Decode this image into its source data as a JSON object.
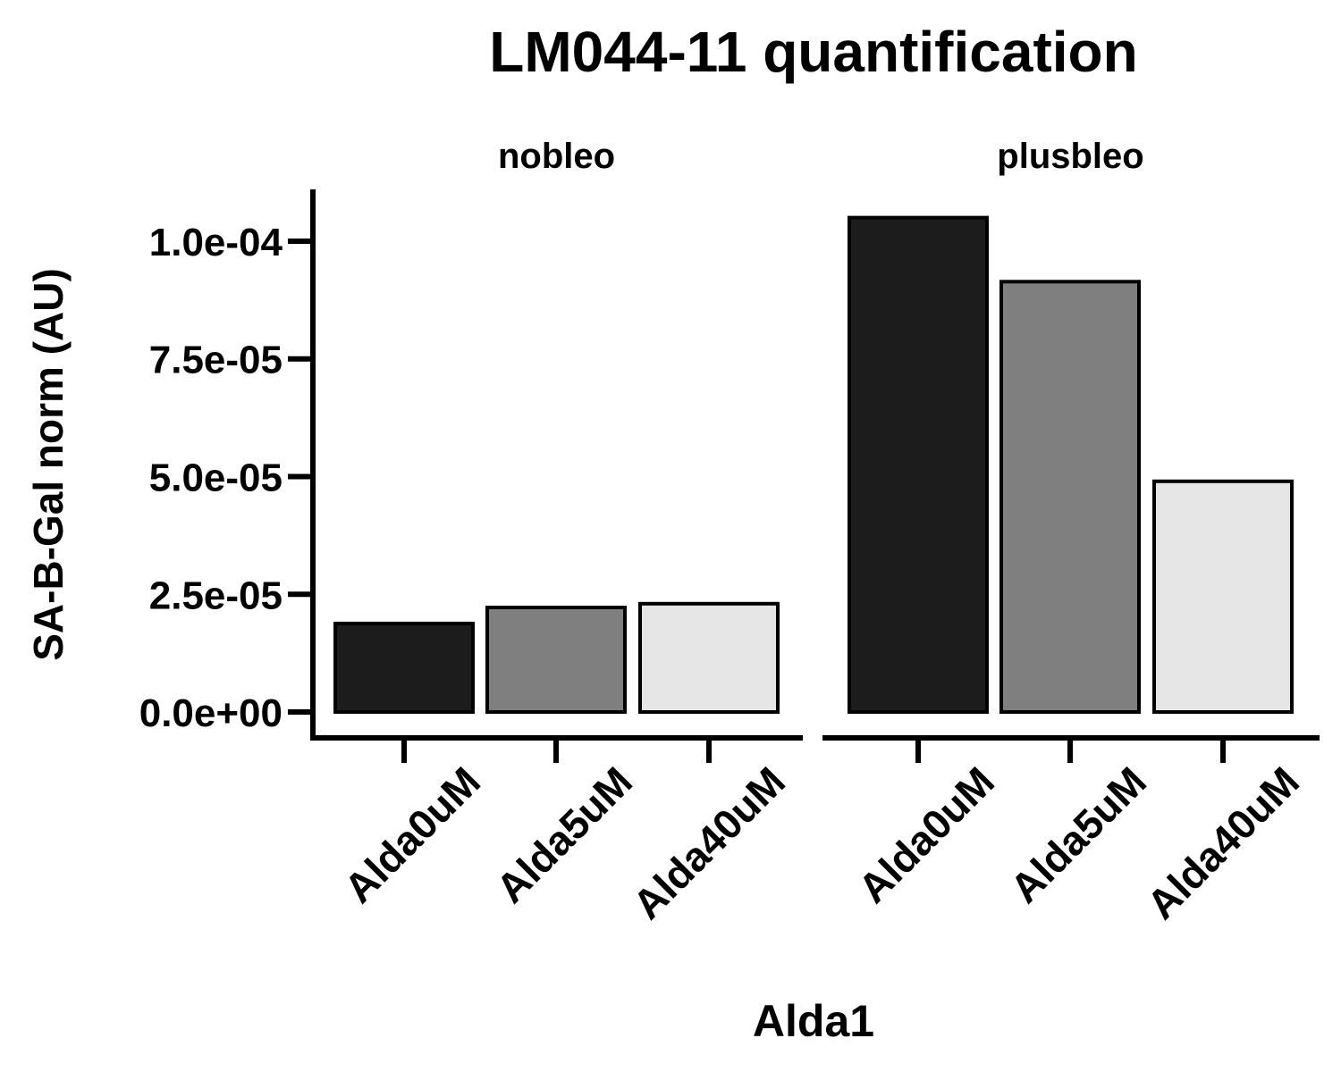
{
  "chart_data": {
    "type": "bar",
    "title": "LM044-11 quantification",
    "xlabel": "Alda1",
    "ylabel": "SA-B-Gal norm (AU)",
    "ylim": [
      -5.5e-06,
      0.000111
    ],
    "yticks": [
      0,
      2.5e-05,
      5e-05,
      7.5e-05,
      0.0001
    ],
    "ytick_labels": [
      "0.0e+00",
      "2.5e-05",
      "5.0e-05",
      "7.5e-05",
      "1.0e-04"
    ],
    "grid": false,
    "legend": "none",
    "categories": [
      "Alda0uM",
      "Alda5uM",
      "Alda40uM"
    ],
    "colors": [
      "#1c1c1c",
      "#7f7f7f",
      "#e6e6e6"
    ],
    "facets": [
      {
        "label": "nobleo",
        "values": [
          1.88e-05,
          2.22e-05,
          2.3e-05
        ]
      },
      {
        "label": "plusbleo",
        "values": [
          0.000105,
          9.14e-05,
          4.9e-05
        ]
      }
    ]
  }
}
